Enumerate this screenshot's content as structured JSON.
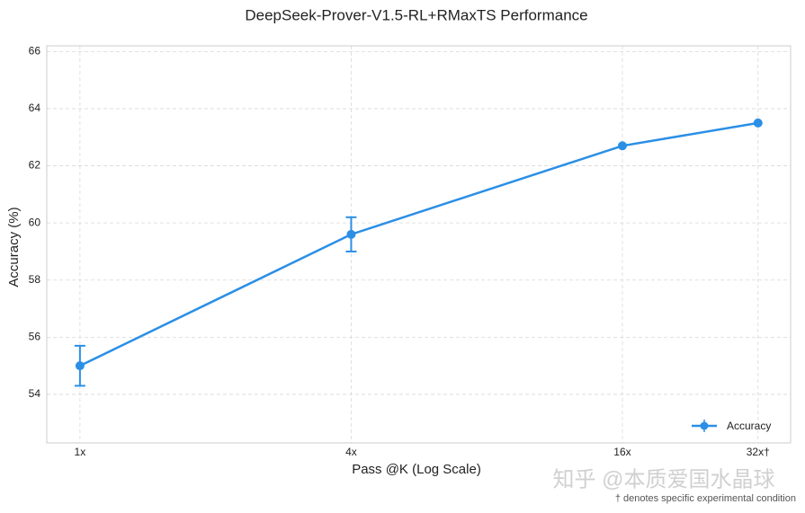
{
  "chart_data": {
    "type": "line",
    "title": "DeepSeek-Prover-V1.5-RL+RMaxTS Performance",
    "xlabel": "Pass @K (Log Scale)",
    "ylabel": "Accuracy (%)",
    "x": [
      1,
      4,
      16,
      32
    ],
    "xscale": "log",
    "xlim": [
      0.844,
      37.8
    ],
    "xticks": [
      {
        "value": 1,
        "label": "1x"
      },
      {
        "value": 4,
        "label": "4x"
      },
      {
        "value": 16,
        "label": "16x"
      },
      {
        "value": 32,
        "label": "32x†"
      }
    ],
    "ylim": [
      52.3,
      66.2
    ],
    "yticks": [
      54,
      56,
      58,
      60,
      62,
      64,
      66
    ],
    "grid": true,
    "legend": "lower right",
    "series": [
      {
        "name": "Accuracy",
        "color": "#2b8fe6",
        "values": [
          55.0,
          59.6,
          62.7,
          63.5
        ],
        "errors": [
          0.7,
          0.6,
          null,
          null
        ]
      }
    ],
    "footnote": "† denotes specific experimental condition",
    "watermark": "知乎 @本质爱国水晶球"
  }
}
